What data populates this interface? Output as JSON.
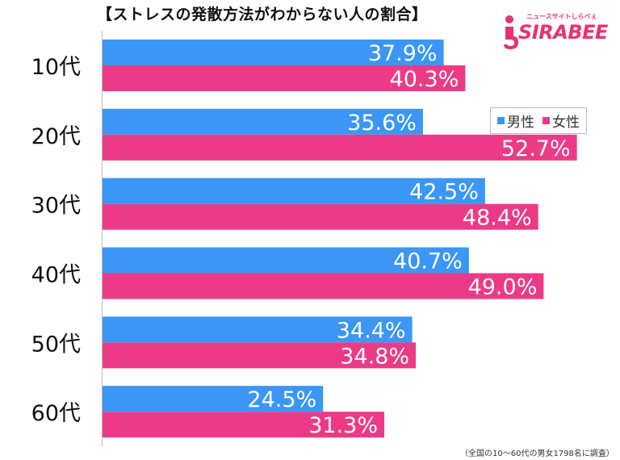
{
  "title": "【ストレスの発散方法がわからない人の割合】",
  "logo": {
    "tagline": "ニュースサイトしらべぇ",
    "brand": "SIRABEE"
  },
  "footnote": "（全国の10〜60代の男女1798名に調査）",
  "colors": {
    "male": "#3b96f5",
    "female": "#ed3a86",
    "axis": "#bbbbbb",
    "label_text": "#ffffff"
  },
  "chart_data": {
    "type": "bar",
    "orientation": "horizontal",
    "title": "【ストレスの発散方法がわからない人の割合】",
    "categories": [
      "10代",
      "20代",
      "30代",
      "40代",
      "50代",
      "60代"
    ],
    "series": [
      {
        "name": "男性",
        "color": "#3b96f5",
        "values": [
          37.9,
          35.6,
          42.5,
          40.7,
          34.4,
          24.5
        ]
      },
      {
        "name": "女性",
        "color": "#ed3a86",
        "values": [
          40.3,
          52.7,
          48.4,
          49.0,
          34.8,
          31.3
        ]
      }
    ],
    "value_labels": {
      "男性": [
        "37.9%",
        "35.6%",
        "42.5%",
        "40.7%",
        "34.4%",
        "24.5%"
      ],
      "女性": [
        "40.3%",
        "52.7%",
        "48.4%",
        "49.0%",
        "34.8%",
        "31.3%"
      ]
    },
    "xlim": [
      0,
      56.5
    ],
    "grid": false,
    "legend_position": "right"
  }
}
